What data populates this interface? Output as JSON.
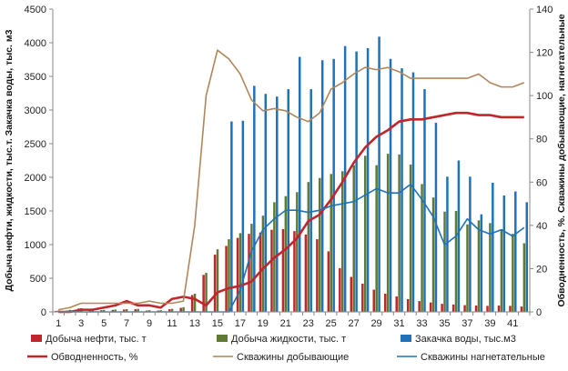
{
  "chart_data": {
    "type": "bar",
    "x": [
      1,
      2,
      3,
      4,
      5,
      6,
      7,
      8,
      9,
      10,
      11,
      12,
      13,
      14,
      15,
      16,
      17,
      18,
      19,
      20,
      21,
      22,
      23,
      24,
      25,
      26,
      27,
      28,
      29,
      30,
      31,
      32,
      33,
      34,
      35,
      36,
      37,
      38,
      39,
      40,
      41,
      42
    ],
    "x_tick_labels": [
      "1",
      "3",
      "5",
      "7",
      "9",
      "11",
      "13",
      "15",
      "17",
      "19",
      "21",
      "23",
      "25",
      "27",
      "29",
      "31",
      "33",
      "35",
      "37",
      "39",
      "41"
    ],
    "ylabel": "Добыча нефти, жидкости, тыс.т. Закачка воды, тыс. м3",
    "y2label": "Обводненность, %. Скважины добывающие, нагнетательные",
    "ylim": [
      0,
      4500
    ],
    "y_ticks": [
      0,
      500,
      1000,
      1500,
      2000,
      2500,
      3000,
      3500,
      4000,
      4500
    ],
    "y2lim": [
      0,
      140
    ],
    "y2_ticks": [
      0,
      20,
      40,
      60,
      80,
      100,
      120,
      140
    ],
    "grid": false,
    "legend_position": "bottom",
    "series": [
      {
        "name": "Добыча нефти, тыс. т",
        "kind": "bar",
        "axis": "left",
        "color": "#c0272d",
        "values": [
          15,
          20,
          50,
          30,
          25,
          30,
          35,
          40,
          20,
          20,
          40,
          60,
          250,
          550,
          850,
          980,
          1100,
          1160,
          1180,
          1220,
          1230,
          1200,
          1150,
          1080,
          900,
          650,
          520,
          420,
          330,
          270,
          230,
          190,
          160,
          140,
          120,
          110,
          100,
          95,
          90,
          95,
          90,
          80
        ]
      },
      {
        "name": "Добыча жидкости, тыс. т",
        "kind": "bar",
        "axis": "left",
        "color": "#5f7a32",
        "values": [
          20,
          30,
          55,
          40,
          30,
          35,
          40,
          45,
          25,
          25,
          45,
          70,
          270,
          580,
          930,
          1080,
          1170,
          1310,
          1430,
          1630,
          1720,
          1780,
          1930,
          1990,
          2050,
          2090,
          2180,
          2320,
          2180,
          2350,
          2340,
          2190,
          1900,
          1700,
          1490,
          1500,
          1300,
          1360,
          1320,
          1230,
          1160,
          1020
        ]
      },
      {
        "name": "Закачка воды, тыс.м3",
        "kind": "bar",
        "axis": "left",
        "color": "#1f72b8",
        "values": [
          0,
          0,
          0,
          0,
          0,
          0,
          0,
          0,
          0,
          0,
          0,
          0,
          0,
          0,
          0,
          2830,
          2840,
          3360,
          3240,
          3200,
          3310,
          3790,
          3310,
          3740,
          3760,
          3950,
          3870,
          3920,
          4090,
          3760,
          3620,
          3560,
          3310,
          2810,
          2010,
          2250,
          2010,
          1450,
          1920,
          1730,
          1790,
          1630
        ]
      },
      {
        "name": "Обводненность, %",
        "kind": "line",
        "axis": "right",
        "color": "#c0272d",
        "values": [
          0,
          0,
          1,
          1,
          2,
          3,
          5,
          3,
          3,
          2,
          6,
          7,
          6,
          3,
          9,
          11,
          12,
          14,
          20,
          25,
          29,
          34,
          42,
          45,
          52,
          60,
          69,
          76,
          81,
          84,
          88,
          89,
          89,
          90,
          91,
          92,
          92,
          91,
          91,
          90,
          90,
          90
        ]
      },
      {
        "name": "Скважины добывающие",
        "kind": "line",
        "axis": "right",
        "color": "#b1865b",
        "values": [
          1,
          2,
          4,
          4,
          4,
          4,
          4,
          4,
          5,
          4,
          4,
          5,
          40,
          100,
          121,
          117,
          110,
          98,
          93,
          94,
          93,
          90,
          88,
          92,
          103,
          106,
          110,
          113,
          112,
          113,
          111,
          108,
          108,
          108,
          108,
          108,
          108,
          110,
          106,
          104,
          104,
          106
        ]
      },
      {
        "name": "Скважины нагнетательные",
        "kind": "line",
        "axis": "right",
        "color": "#1f72b8",
        "values": [
          0,
          0,
          0,
          0,
          0,
          0,
          0,
          0,
          0,
          0,
          0,
          0,
          0,
          0,
          0,
          0,
          10,
          28,
          38,
          43,
          47,
          47,
          46,
          47,
          49,
          50,
          51,
          54,
          57,
          55,
          55,
          59,
          52,
          44,
          31,
          35,
          43,
          38,
          36,
          38,
          35,
          39
        ]
      }
    ]
  }
}
